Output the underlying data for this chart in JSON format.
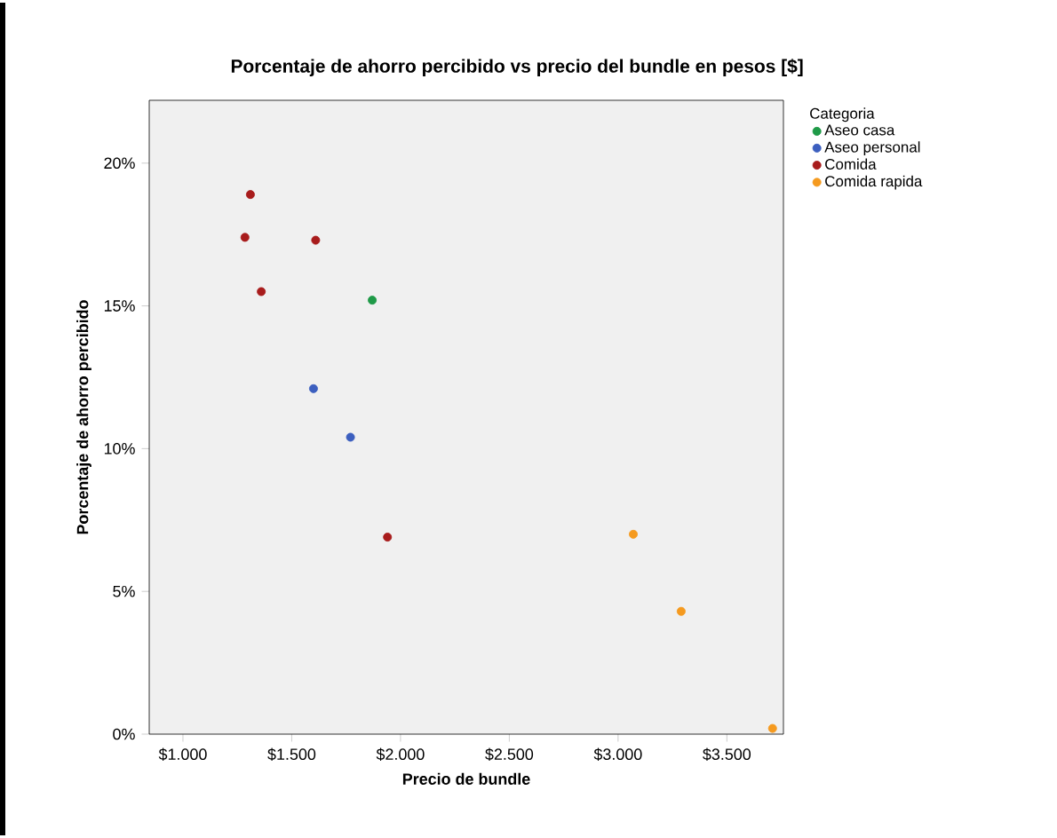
{
  "chart_data": {
    "type": "scatter",
    "title": "Porcentaje de ahorro percibido vs precio del bundle en pesos [$]",
    "xlabel": "Precio de bundle",
    "ylabel": "Porcentaje de ahorro percibido",
    "legend_title": "Categoria",
    "legend": "top right",
    "marker": "circle",
    "grid": false,
    "xlim": [
      845,
      3760
    ],
    "ylim": [
      0,
      22.2
    ],
    "xticks": [
      {
        "value": 1000,
        "label": "$1.000"
      },
      {
        "value": 1500,
        "label": "$1.500"
      },
      {
        "value": 2000,
        "label": "$2.000"
      },
      {
        "value": 2500,
        "label": "$2.500"
      },
      {
        "value": 3000,
        "label": "$3.000"
      },
      {
        "value": 3500,
        "label": "$3.500"
      }
    ],
    "yticks": [
      {
        "value": 0,
        "label": "0%"
      },
      {
        "value": 5,
        "label": "5%"
      },
      {
        "value": 10,
        "label": "10%"
      },
      {
        "value": 15,
        "label": "15%"
      },
      {
        "value": 20,
        "label": "20%"
      }
    ],
    "series": [
      {
        "name": "Aseo casa",
        "color": "#1f9a48",
        "x": [
          1870
        ],
        "values": [
          15.2
        ]
      },
      {
        "name": "Aseo personal",
        "color": "#3c5fbf",
        "x": [
          1600,
          1770
        ],
        "values": [
          12.1,
          10.4
        ]
      },
      {
        "name": "Comida",
        "color": "#a81c1c",
        "x": [
          1310,
          1285,
          1610,
          1360,
          1940
        ],
        "values": [
          18.9,
          17.4,
          17.3,
          15.5,
          6.9
        ]
      },
      {
        "name": "Comida rapida",
        "color": "#f59a1f",
        "x": [
          3070,
          3290,
          3710
        ],
        "values": [
          7.0,
          4.3,
          0.2
        ]
      }
    ]
  }
}
